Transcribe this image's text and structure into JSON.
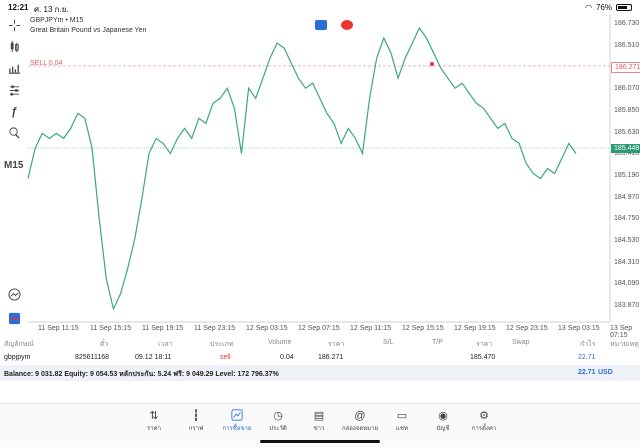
{
  "status": {
    "time": "12:21",
    "date": "ศ. 13 ก.ย.",
    "battery": "76%"
  },
  "chart": {
    "symbol_line": "GBPJPYm • M15",
    "description": "Great Britain Pound vs Japanese Yen",
    "timeframe": "M15",
    "sell_label": "SELL 0.04",
    "sell_price": "186.271",
    "bid_price": "185.448",
    "price_ticks": [
      "186.730",
      "186.510",
      "186.290",
      "186.070",
      "185.850",
      "185.630",
      "185.410",
      "185.190",
      "184.970",
      "184.750",
      "184.530",
      "184.310",
      "184.090",
      "183.870"
    ],
    "time_ticks": [
      "11 Sep 11:15",
      "11 Sep 15:15",
      "11 Sep 19:15",
      "11 Sep 23:15",
      "12 Sep 03:15",
      "12 Sep 07:15",
      "12 Sep 11:15",
      "12 Sep 15:15",
      "12 Sep 19:15",
      "12 Sep 23:15",
      "13 Sep 03:15",
      "13 Sep 07:15"
    ],
    "line_color": "#3aa87e"
  },
  "chart_data": {
    "type": "line",
    "ylim": [
      183.77,
      186.84
    ],
    "values": [
      185.2,
      185.5,
      185.65,
      185.6,
      185.65,
      185.6,
      185.7,
      185.85,
      185.8,
      185.5,
      184.8,
      184.2,
      183.9,
      184.05,
      184.3,
      184.6,
      185.0,
      185.45,
      185.6,
      185.55,
      185.45,
      185.6,
      185.7,
      185.6,
      185.8,
      185.75,
      185.95,
      186.0,
      186.1,
      185.9,
      185.45,
      186.1,
      186.0,
      186.2,
      186.4,
      186.55,
      186.5,
      186.35,
      186.2,
      186.1,
      186.15,
      186.0,
      185.85,
      185.75,
      185.55,
      185.7,
      185.6,
      185.45,
      186.0,
      186.4,
      186.6,
      186.45,
      186.2,
      186.4,
      186.55,
      186.7,
      186.6,
      186.45,
      186.3,
      186.2,
      186.1,
      186.15,
      186.05,
      185.95,
      185.9,
      185.8,
      185.7,
      185.75,
      185.6,
      185.55,
      185.35,
      185.25,
      185.2,
      185.3,
      185.25,
      185.4,
      185.55,
      185.45
    ],
    "xlabel": "",
    "ylabel": ""
  },
  "table": {
    "headers": [
      "สัญลักษณ์",
      "ตั๋ว",
      "เวลา",
      "ประเภท",
      "Volume",
      "ราคา",
      "S/L",
      "T/P",
      "ราคา",
      "Swap",
      "กำไร",
      "หมายเหตุ"
    ],
    "row": {
      "symbol": "gbpjpym",
      "ticket": "825611168",
      "time": "09.12 18:11",
      "type": "sell",
      "volume": "0.04",
      "open_price": "186.271",
      "current_price": "185.470",
      "profit": "22.71"
    },
    "balance_text": "Balance: 9 031.82 Equity: 9 054.53 หลักประกัน: 5.24 ฟรี: 9 049.29 Level: 172 796.37%",
    "balance_profit": "22.71",
    "currency": "USD"
  },
  "nav": [
    {
      "label": "ราคา",
      "icon": "quotes-icon"
    },
    {
      "label": "กราฟ",
      "icon": "chart-icon"
    },
    {
      "label": "การซื้อขาย",
      "icon": "trade-icon"
    },
    {
      "label": "ประวัติ",
      "icon": "history-icon"
    },
    {
      "label": "ข่าว",
      "icon": "news-icon"
    },
    {
      "label": "กล่องจดหมาย",
      "icon": "mailbox-icon"
    },
    {
      "label": "แชท",
      "icon": "chat-icon"
    },
    {
      "label": "บัญชี",
      "icon": "account-icon"
    },
    {
      "label": "การตั้งค่า",
      "icon": "settings-icon"
    }
  ]
}
